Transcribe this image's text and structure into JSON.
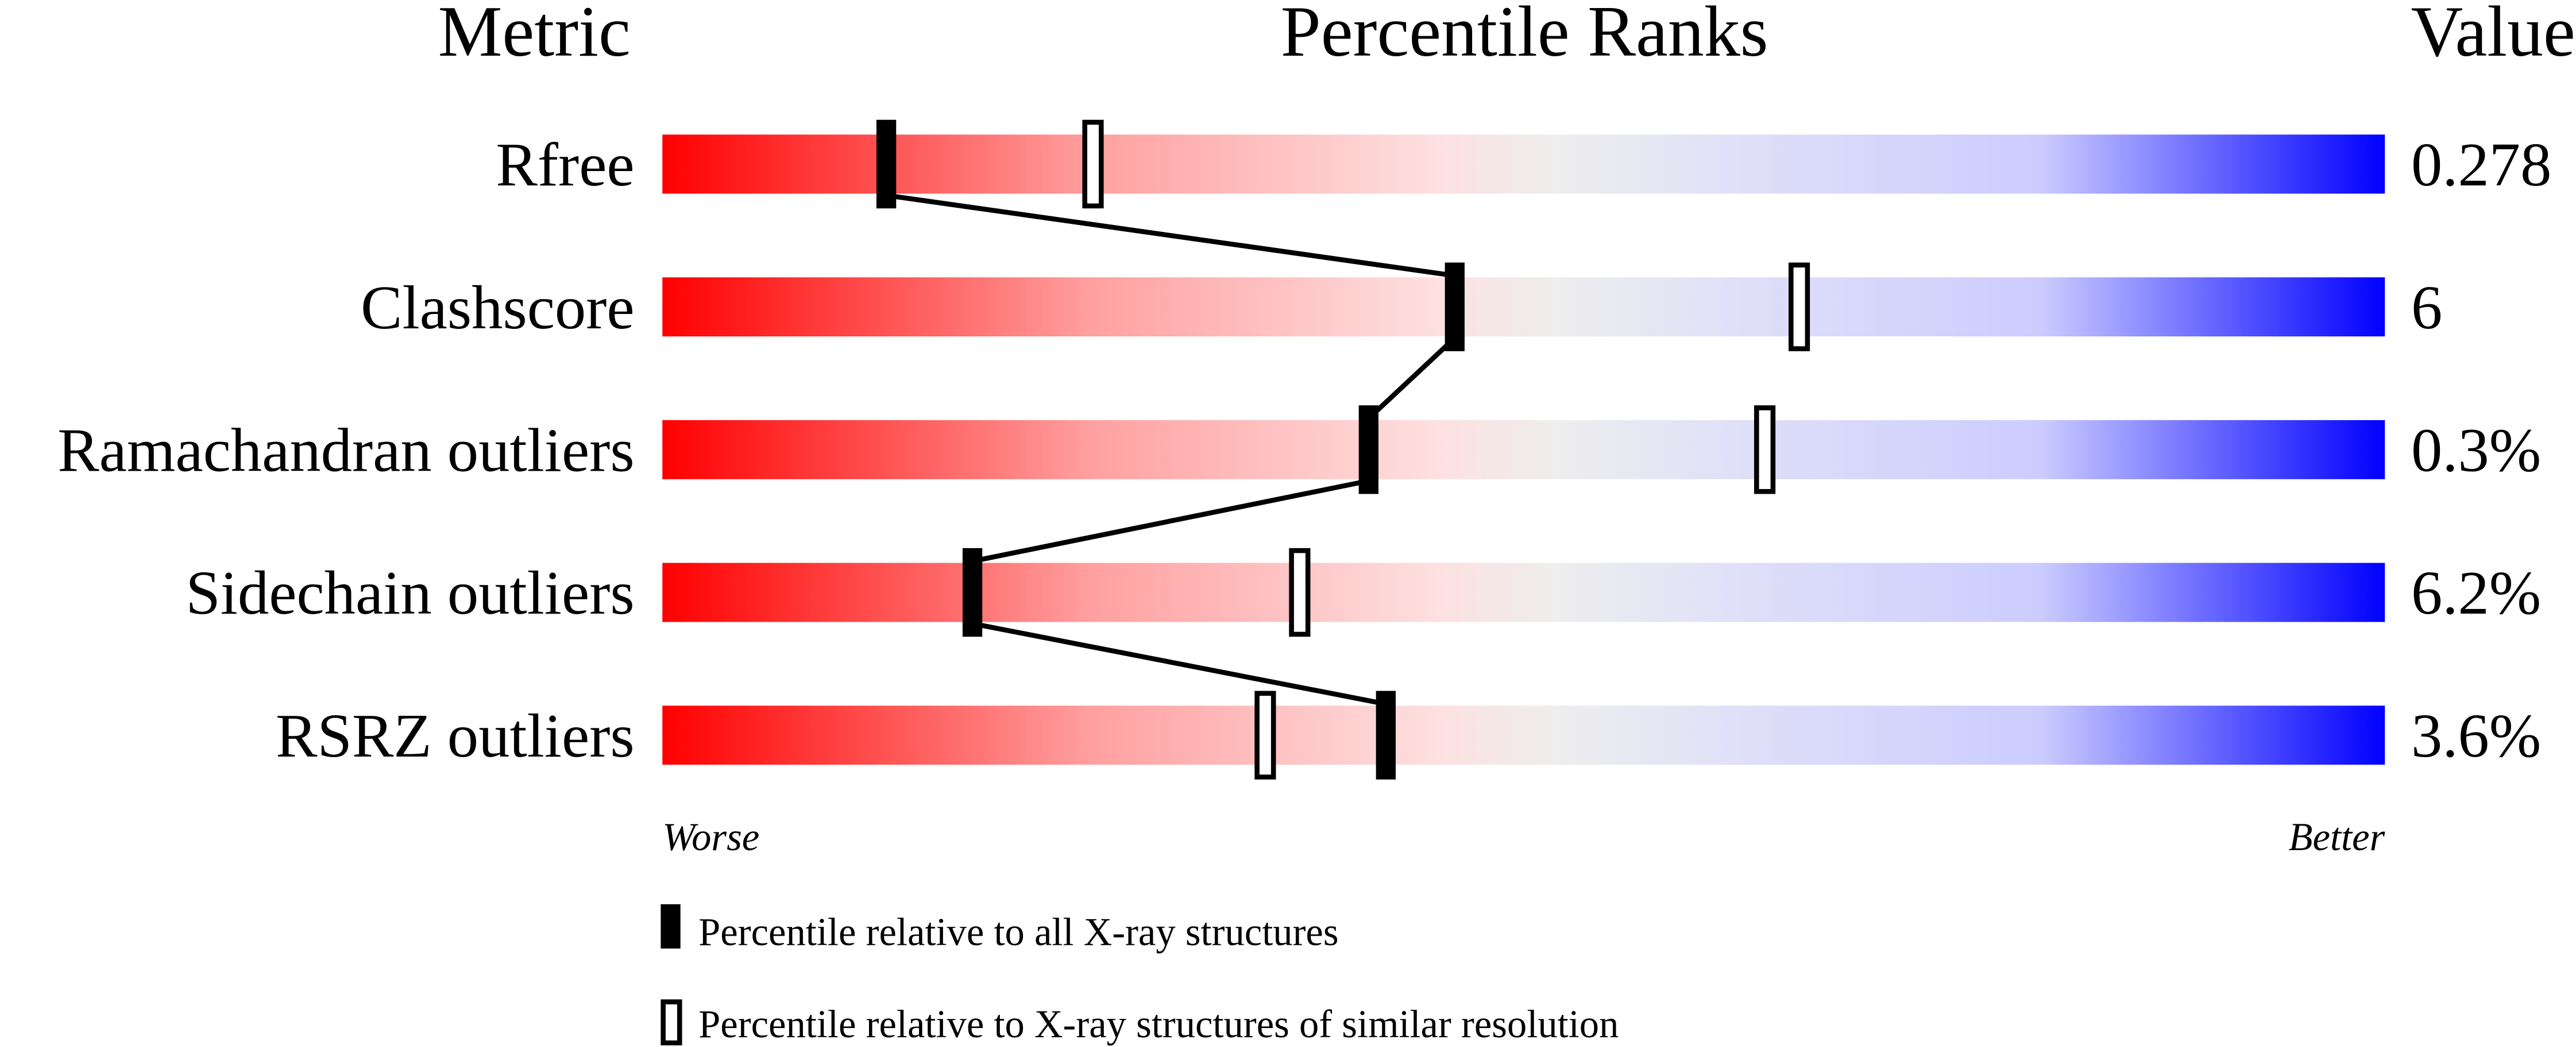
{
  "chart_data": {
    "type": "percentile-slider",
    "headers": {
      "metric": "Metric",
      "ranks": "Percentile Ranks",
      "value": "Value"
    },
    "xlim": [
      0,
      100
    ],
    "rows": [
      {
        "metric": "Rfree",
        "value": "0.278",
        "percentile_all": 13,
        "percentile_similar": 25
      },
      {
        "metric": "Clashscore",
        "value": "6",
        "percentile_all": 46,
        "percentile_similar": 66
      },
      {
        "metric": "Ramachandran outliers",
        "value": "0.3%",
        "percentile_all": 41,
        "percentile_similar": 64
      },
      {
        "metric": "Sidechain outliers",
        "value": "6.2%",
        "percentile_all": 18,
        "percentile_similar": 37
      },
      {
        "metric": "RSRZ outliers",
        "value": "3.6%",
        "percentile_all": 42,
        "percentile_similar": 35
      }
    ],
    "axis_ends": {
      "left": "Worse",
      "right": "Better"
    },
    "legend": {
      "filled": "Percentile relative to all X-ray structures",
      "open": "Percentile relative to X-ray structures of similar resolution"
    },
    "colors": {
      "worse": "#ff0000",
      "middle": "#eeeeee",
      "better": "#0000ff",
      "marker": "#000000"
    }
  }
}
